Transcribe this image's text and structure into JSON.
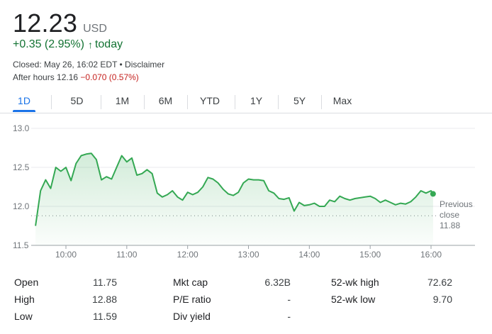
{
  "quote": {
    "price": "12.23",
    "currency": "USD",
    "change": "+0.35 (2.95%)",
    "change_arrow": "↑",
    "change_period": "today",
    "closed_text": "Closed: May 26, 16:02 EDT • Disclaimer",
    "after_hours_label": "After hours 12.16",
    "after_hours_change": "−0.070 (0.57%)"
  },
  "colors": {
    "positive": "#137333",
    "negative": "#c5221f",
    "line": "#34a853",
    "accent": "#1a73e8"
  },
  "tabs": [
    {
      "label": "1D",
      "active": true
    },
    {
      "label": "5D",
      "active": false
    },
    {
      "label": "1M",
      "active": false
    },
    {
      "label": "6M",
      "active": false
    },
    {
      "label": "YTD",
      "active": false
    },
    {
      "label": "1Y",
      "active": false
    },
    {
      "label": "5Y",
      "active": false
    },
    {
      "label": "Max",
      "active": false
    }
  ],
  "chart_data": {
    "type": "area",
    "xlabel": "",
    "ylabel": "",
    "ylim": [
      11.5,
      13.0
    ],
    "yticks": [
      "13.0",
      "12.5",
      "12.0",
      "11.5"
    ],
    "xticks": [
      "10:00",
      "11:00",
      "12:00",
      "13:00",
      "14:00",
      "15:00",
      "16:00"
    ],
    "previous_close_label": [
      "Previous",
      "close",
      "11.88"
    ],
    "previous_close": 11.88,
    "grid": true,
    "series": [
      {
        "x": [
          "09:30",
          "09:35",
          "09:40",
          "09:45",
          "09:50",
          "09:55",
          "10:00",
          "10:05",
          "10:10",
          "10:15",
          "10:20",
          "10:25",
          "10:30",
          "10:35",
          "10:40",
          "10:45",
          "10:50",
          "10:55",
          "11:00",
          "11:05",
          "11:10",
          "11:15",
          "11:20",
          "11:25",
          "11:30",
          "11:35",
          "11:40",
          "11:45",
          "11:50",
          "11:55",
          "12:00",
          "12:05",
          "12:10",
          "12:15",
          "12:20",
          "12:25",
          "12:30",
          "12:35",
          "12:40",
          "12:45",
          "12:50",
          "12:55",
          "13:00",
          "13:05",
          "13:10",
          "13:15",
          "13:20",
          "13:25",
          "13:30",
          "13:35",
          "13:40",
          "13:45",
          "13:50",
          "13:55",
          "14:00",
          "14:05",
          "14:10",
          "14:15",
          "14:20",
          "14:25",
          "14:30",
          "14:35",
          "14:40",
          "14:45",
          "14:50",
          "14:55",
          "15:00",
          "15:05",
          "15:10",
          "15:15",
          "15:20",
          "15:25",
          "15:30",
          "15:35",
          "15:40",
          "15:45",
          "15:50",
          "15:55",
          "16:00",
          "16:02"
        ],
        "values": [
          11.75,
          12.2,
          12.34,
          12.23,
          12.5,
          12.45,
          12.5,
          12.33,
          12.55,
          12.65,
          12.67,
          12.68,
          12.6,
          12.34,
          12.38,
          12.35,
          12.5,
          12.65,
          12.57,
          12.62,
          12.4,
          12.42,
          12.47,
          12.42,
          12.17,
          12.12,
          12.15,
          12.2,
          12.12,
          12.08,
          12.18,
          12.15,
          12.18,
          12.25,
          12.37,
          12.35,
          12.3,
          12.22,
          12.16,
          12.14,
          12.18,
          12.3,
          12.35,
          12.34,
          12.34,
          12.33,
          12.2,
          12.17,
          12.1,
          12.09,
          12.11,
          11.94,
          12.05,
          12.01,
          12.02,
          12.04,
          12.0,
          12.0,
          12.08,
          12.06,
          12.13,
          12.1,
          12.08,
          12.1,
          12.11,
          12.12,
          12.13,
          12.1,
          12.05,
          12.08,
          12.05,
          12.02,
          12.04,
          12.03,
          12.06,
          12.12,
          12.2,
          12.17,
          12.2,
          12.16
        ]
      }
    ]
  },
  "stats": [
    [
      {
        "label": "Open",
        "value": "11.75"
      },
      {
        "label": "Mkt cap",
        "value": "6.32B"
      },
      {
        "label": "52-wk high",
        "value": "72.62"
      }
    ],
    [
      {
        "label": "High",
        "value": "12.88"
      },
      {
        "label": "P/E ratio",
        "value": "-"
      },
      {
        "label": "52-wk low",
        "value": "9.70"
      }
    ],
    [
      {
        "label": "Low",
        "value": "11.59"
      },
      {
        "label": "Div yield",
        "value": "-"
      },
      {
        "label": "",
        "value": ""
      }
    ]
  ]
}
